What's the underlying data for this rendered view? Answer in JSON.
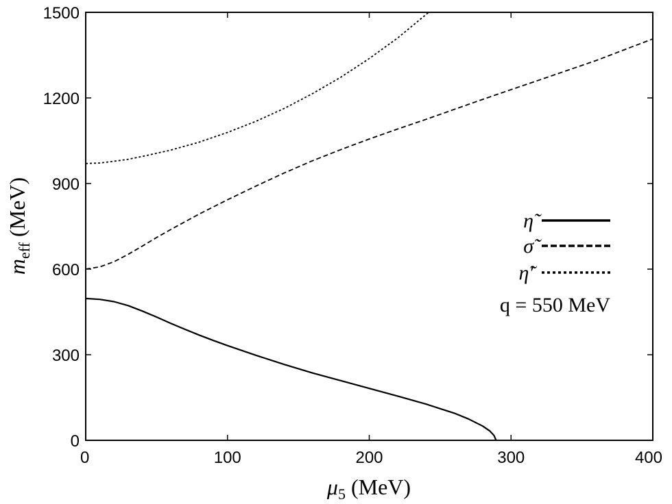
{
  "chart_data": {
    "type": "line",
    "xlabel": "μ5 (MeV)",
    "ylabel": "meff (MeV)",
    "xlim": [
      0,
      400
    ],
    "ylim": [
      0,
      1500
    ],
    "xticks": [
      "0",
      "100",
      "200",
      "300",
      "400"
    ],
    "yticks": [
      "0",
      "300",
      "600",
      "900",
      "1200",
      "1500"
    ],
    "grid": false,
    "legend_position": "right",
    "annotation": "q = 550 MeV",
    "series": [
      {
        "name": "η̃",
        "style": "solid",
        "x": [
          0,
          10,
          20,
          30,
          40,
          50,
          60,
          70,
          80,
          90,
          100,
          120,
          140,
          160,
          180,
          200,
          220,
          240,
          260,
          270,
          280,
          285,
          288,
          289.5
        ],
        "y": [
          497,
          494,
          486,
          472,
          453,
          432,
          410,
          389,
          369,
          350,
          332,
          298,
          266,
          236,
          209,
          182,
          155,
          127,
          95,
          75,
          50,
          33,
          17,
          0
        ]
      },
      {
        "name": "σ̃",
        "style": "dashed",
        "x": [
          0,
          10,
          20,
          30,
          40,
          50,
          60,
          80,
          100,
          120,
          140,
          160,
          180,
          200,
          220,
          240,
          260,
          280,
          300,
          320,
          340,
          360,
          380,
          400
        ],
        "y": [
          600,
          608,
          626,
          652,
          681,
          711,
          739,
          793,
          843,
          891,
          937,
          980,
          1019,
          1056,
          1091,
          1125,
          1160,
          1195,
          1229,
          1263,
          1297,
          1331,
          1369,
          1407
        ]
      },
      {
        "name": "η̃′",
        "style": "dotted",
        "x": [
          0,
          10,
          20,
          30,
          40,
          50,
          60,
          70,
          80,
          100,
          120,
          140,
          160,
          180,
          200,
          220,
          240,
          242
        ],
        "y": [
          970,
          972,
          978,
          985,
          995,
          1006,
          1017,
          1031,
          1045,
          1079,
          1118,
          1163,
          1215,
          1273,
          1338,
          1410,
          1492,
          1500
        ]
      }
    ]
  }
}
